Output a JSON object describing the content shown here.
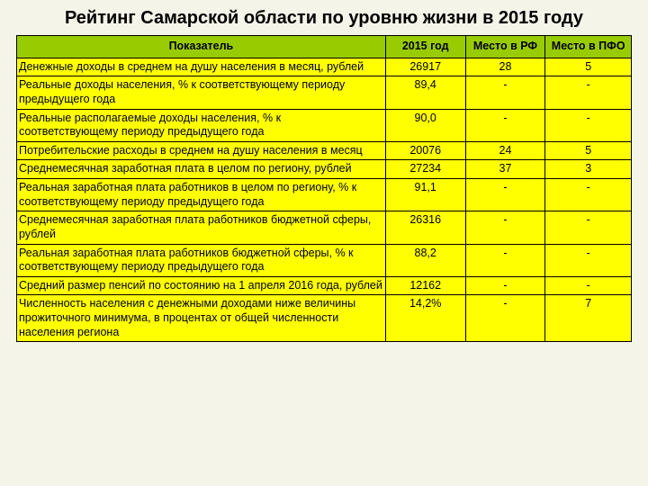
{
  "title": "Рейтинг Самарской области по уровню жизни в 2015 году",
  "table": {
    "type": "table",
    "header_bg": "#99cc00",
    "cell_bg": "#ffff00",
    "border_color": "#000000",
    "fontsize": 12.5,
    "columns": [
      {
        "label": "Показатель",
        "width_pct": 60,
        "align": "left"
      },
      {
        "label": "2015 год",
        "width_pct": 13,
        "align": "center"
      },
      {
        "label": "Место в РФ",
        "width_pct": 13,
        "align": "center"
      },
      {
        "label": "Место в ПФО",
        "width_pct": 14,
        "align": "center"
      }
    ],
    "rows": [
      [
        "Денежные доходы в среднем на душу населения в месяц, рублей",
        "26917",
        "28",
        "5"
      ],
      [
        "Реальные доходы населения, % к соответствующему периоду предыдущего года",
        "89,4",
        "-",
        "-"
      ],
      [
        "Реальные располагаемые доходы населения, % к соответствующему периоду предыдущего\nгода",
        "90,0",
        "-",
        "-"
      ],
      [
        "Потребительские расходы в среднем на душу населения в месяц",
        "20076",
        "24",
        "5"
      ],
      [
        "Среднемесячная заработная плата в целом по региону, рублей",
        "27234",
        "37",
        "3"
      ],
      [
        "Реальная заработная плата работников в целом по региону, % к соответствующему периоду предыдущего года",
        "91,1",
        "-",
        "-"
      ],
      [
        "Среднемесячная заработная плата работников бюджетной сферы, рублей",
        "26316",
        "-",
        "-"
      ],
      [
        "Реальная заработная плата работников бюджетной сферы, % к соответствующему периоду предыдущего\nгода",
        "88,2",
        "-",
        "-"
      ],
      [
        "Средний размер пенсий по состоянию на 1 апреля 2016 года, рублей",
        "12162",
        "-",
        "-"
      ],
      [
        "Численность населения с денежными доходами ниже величины прожиточного минимума, в процентах от общей численности населения региона",
        "14,2%",
        "-",
        "7"
      ]
    ]
  }
}
